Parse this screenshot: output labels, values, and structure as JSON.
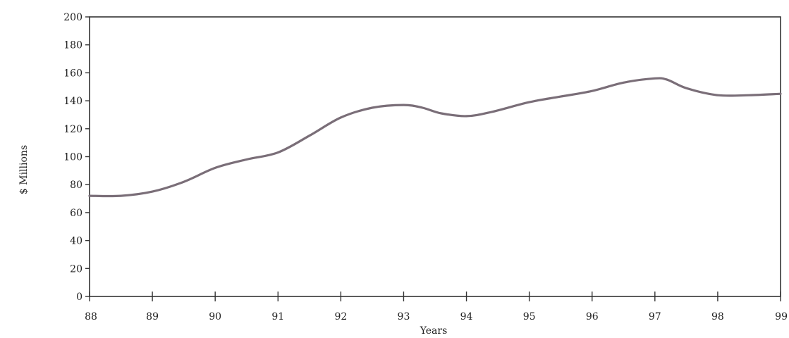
{
  "chart_data": {
    "type": "line",
    "title": "",
    "xlabel": "Years",
    "ylabel": "$ Millions",
    "categories": [
      "88",
      "89",
      "90",
      "91",
      "92",
      "93",
      "94",
      "95",
      "96",
      "97",
      "98",
      "99"
    ],
    "x": [
      88,
      88.5,
      89,
      89.5,
      90,
      90.5,
      91,
      91.5,
      92,
      92.5,
      93,
      93.3,
      93.6,
      94,
      94.4,
      95,
      95.5,
      96,
      96.5,
      97,
      97.2,
      97.5,
      98,
      98.5,
      99
    ],
    "series": [
      {
        "values": [
          72,
          72,
          75,
          82,
          92,
          98,
          103,
          115,
          128,
          135,
          137,
          135,
          131,
          129,
          132,
          139,
          143,
          147,
          153,
          156,
          155,
          149,
          144,
          144,
          145
        ]
      }
    ],
    "xlim": [
      88,
      99
    ],
    "ylim": [
      0,
      200
    ],
    "yticks": [
      0,
      20,
      40,
      60,
      80,
      100,
      120,
      140,
      160,
      180,
      200
    ],
    "grid": false,
    "legend": "none",
    "line_color": "#7a6e78",
    "axis_color": "#333333"
  }
}
